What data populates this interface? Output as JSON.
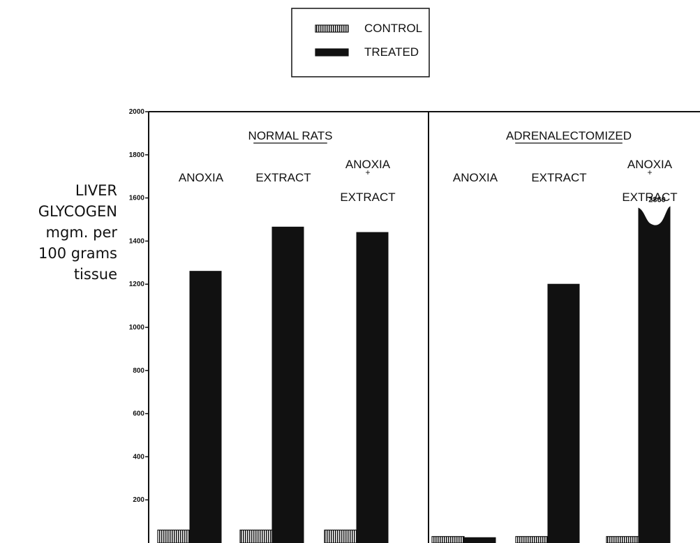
{
  "chart_data": {
    "type": "bar",
    "legend": {
      "placement": "top-center",
      "entries": [
        {
          "label": "CONTROL",
          "style": "hatched"
        },
        {
          "label": "TREATED",
          "style": "solid"
        }
      ]
    },
    "ylabel_lines": [
      "LIVER",
      "GLYCOGEN",
      "mgm. per",
      "100 grams",
      "tissue"
    ],
    "ylim": [
      0,
      2000
    ],
    "yticks": [
      "200",
      "400",
      "600",
      "800",
      "1000",
      "1200",
      "1400",
      "1600",
      "1800",
      "2000"
    ],
    "panels": [
      {
        "title": "NORMAL RATS",
        "categories": [
          {
            "label_lines": [
              "ANOXIA"
            ],
            "control": 60,
            "treated": 1260
          },
          {
            "label_lines": [
              "EXTRACT"
            ],
            "control": 60,
            "treated": 1465
          },
          {
            "label_lines": [
              "ANOXIA",
              "+",
              "EXTRACT"
            ],
            "control": 60,
            "treated": 1440
          }
        ]
      },
      {
        "title": "ADRENALECTOMIZED",
        "categories": [
          {
            "label_lines": [
              "ANOXIA"
            ],
            "control": 30,
            "treated": 25
          },
          {
            "label_lines": [
              "EXTRACT"
            ],
            "control": 30,
            "treated": 1200
          },
          {
            "label_lines": [
              "ANOXIA",
              "+",
              "EXTRACT"
            ],
            "control": 30,
            "treated": 2860,
            "treated_label": "2860",
            "truncated": true
          }
        ]
      }
    ],
    "colors": {
      "treated": "#111111",
      "control_hatch": "#111111",
      "background": "#ffffff"
    }
  }
}
